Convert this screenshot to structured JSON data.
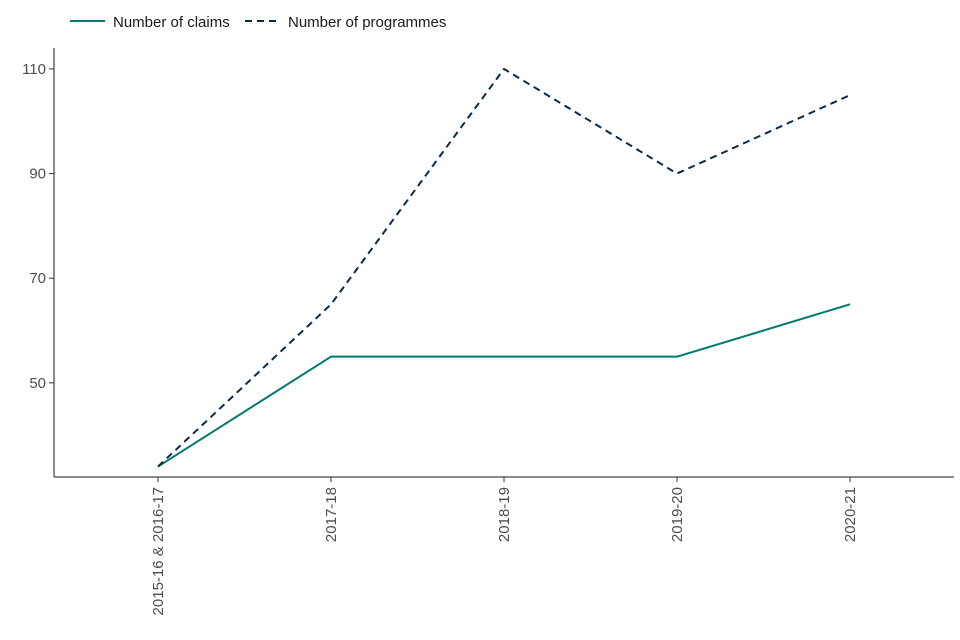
{
  "chart_data": {
    "type": "line",
    "categories": [
      "2015-16 & 2016-17",
      "2017-18",
      "2018-19",
      "2019-20",
      "2020-21"
    ],
    "series": [
      {
        "name": "Number of claims",
        "values": [
          34,
          55,
          55,
          55,
          65
        ],
        "color": "#007a6e",
        "dash": "solid"
      },
      {
        "name": "Number of programmes",
        "values": [
          34,
          65,
          110,
          90,
          105
        ],
        "color": "#0b2a4a",
        "dash": "dashed"
      }
    ],
    "yticks": [
      50,
      70,
      90,
      110
    ],
    "ylim": [
      32,
      114
    ],
    "grid": false,
    "legend_position": "top-left",
    "title": "",
    "xlabel": "",
    "ylabel": ""
  }
}
